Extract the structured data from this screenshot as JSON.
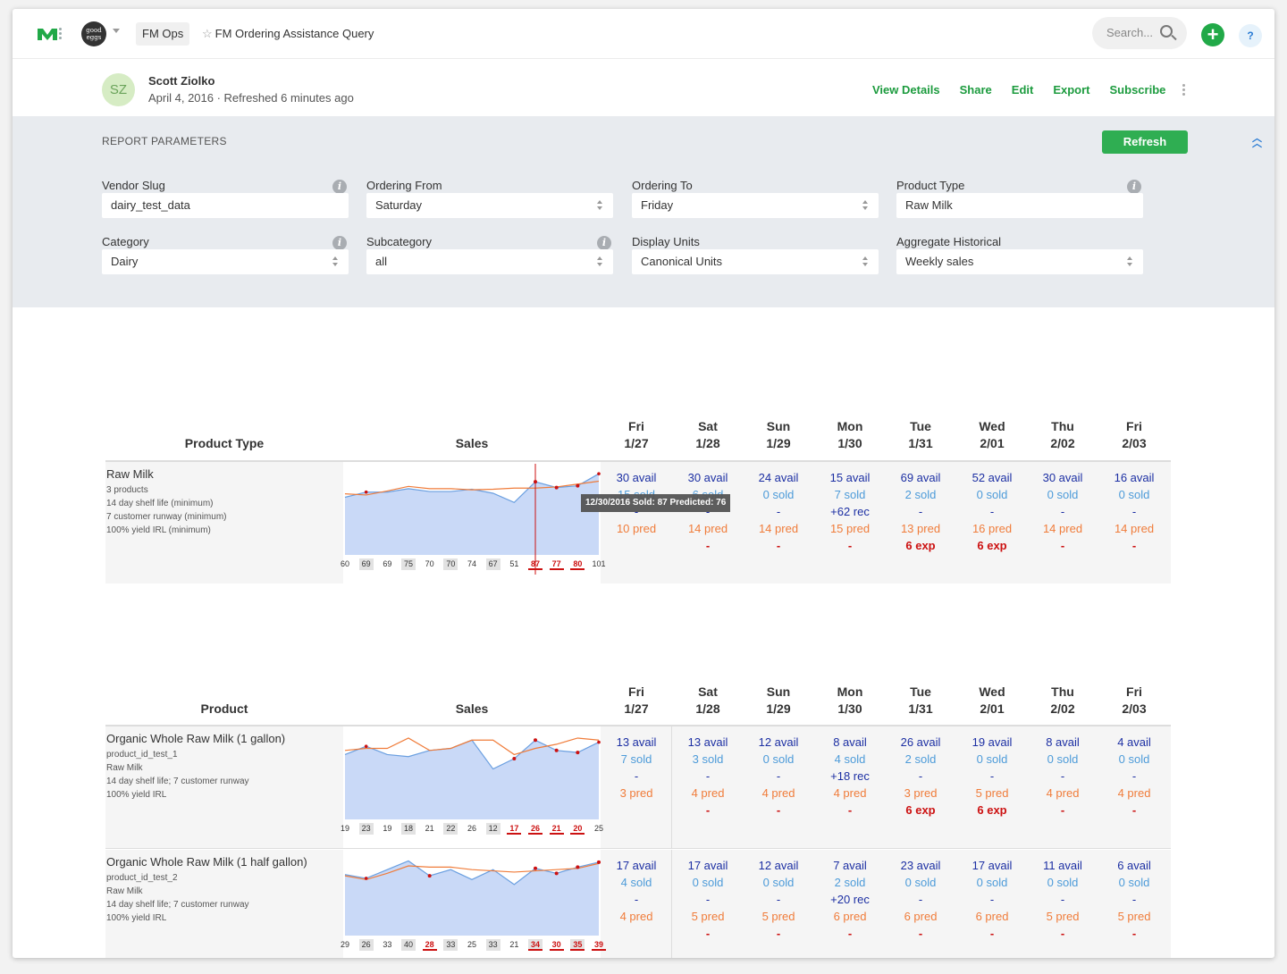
{
  "topbar": {
    "org_avatar_text": "good eggs",
    "space": "FM Ops",
    "title": "FM Ordering Assistance Query",
    "search_placeholder": "Search...",
    "add_label": "+",
    "help_label": "?"
  },
  "author": {
    "initials": "SZ",
    "name": "Scott Ziolko",
    "date": "April 4, 2016 · Refreshed 6 minutes ago"
  },
  "actions": [
    "View Details",
    "Share",
    "Edit",
    "Export",
    "Subscribe"
  ],
  "params": {
    "title": "REPORT PARAMETERS",
    "refresh": "Refresh",
    "fields": [
      {
        "label": "Vendor Slug",
        "value": "dairy_test_data",
        "info": true,
        "select": false
      },
      {
        "label": "Ordering From",
        "value": "Saturday",
        "info": false,
        "select": true
      },
      {
        "label": "Ordering To",
        "value": "Friday",
        "info": false,
        "select": true
      },
      {
        "label": "Product Type",
        "value": "Raw Milk",
        "info": true,
        "select": false
      },
      {
        "label": "Category",
        "value": "Dairy",
        "info": true,
        "select": true
      },
      {
        "label": "Subcategory",
        "value": "all",
        "info": true,
        "select": true
      },
      {
        "label": "Display Units",
        "value": "Canonical Units",
        "info": false,
        "select": true
      },
      {
        "label": "Aggregate Historical",
        "value": "Weekly sales",
        "info": false,
        "select": true
      }
    ]
  },
  "days": [
    {
      "dow": "Fri",
      "date": "1/27"
    },
    {
      "dow": "Sat",
      "date": "1/28"
    },
    {
      "dow": "Sun",
      "date": "1/29"
    },
    {
      "dow": "Mon",
      "date": "1/30"
    },
    {
      "dow": "Tue",
      "date": "1/31"
    },
    {
      "dow": "Wed",
      "date": "2/01"
    },
    {
      "dow": "Thu",
      "date": "2/02"
    },
    {
      "dow": "Fri",
      "date": "2/03"
    }
  ],
  "tables": [
    {
      "col1": "Product Type",
      "col2": "Sales",
      "rows": [
        {
          "title": "Raw Milk",
          "sub": [
            "3 products",
            "14 day shelf life (minimum)",
            "7 customer runway (minimum)",
            "100% yield IRL (minimum)"
          ],
          "sold": [
            60,
            69,
            69,
            75,
            70,
            70,
            74,
            67,
            51,
            87,
            77,
            80,
            101
          ],
          "pred": [
            66,
            64,
            71,
            79,
            75,
            75,
            73,
            74,
            76,
            76,
            78,
            83,
            88
          ],
          "boxed": [
            1,
            3,
            5,
            7
          ],
          "red": [
            9,
            10,
            11
          ],
          "cells": [
            [
              "30 avail",
              "15 sold",
              "-",
              "",
              "10 pred",
              ""
            ],
            [
              "30 avail",
              "6 sold",
              "-",
              "",
              "14 pred",
              "-"
            ],
            [
              "24 avail",
              "0 sold",
              "-",
              "",
              "14 pred",
              "-"
            ],
            [
              "15 avail",
              "7 sold",
              "+62 rec",
              "",
              "15 pred",
              "-"
            ],
            [
              "69 avail",
              "2 sold",
              "-",
              "",
              "13 pred",
              "6 exp"
            ],
            [
              "52 avail",
              "0 sold",
              "-",
              "",
              "16 pred",
              "6 exp"
            ],
            [
              "30 avail",
              "0 sold",
              "-",
              "",
              "14 pred",
              "-"
            ],
            [
              "16 avail",
              "0 sold",
              "-",
              "",
              "14 pred",
              "-"
            ]
          ],
          "tooltip": "12/30/2016 Sold: 87 Predicted: 76"
        }
      ]
    },
    {
      "col1": "Product",
      "col2": "Sales",
      "rows": [
        {
          "title": "Organic Whole Raw Milk (1 gallon)",
          "sub": [
            "product_id_test_1",
            "Raw Milk",
            "14 day shelf life; 7 customer runway",
            "100% yield IRL"
          ],
          "sold": [
            19,
            23,
            19,
            18,
            21,
            22,
            26,
            12,
            17,
            26,
            21,
            20,
            25
          ],
          "pred": [
            21,
            22,
            22,
            27,
            21,
            22,
            26,
            26,
            19,
            22,
            24,
            27,
            26
          ],
          "boxed": [
            1,
            3,
            5,
            7
          ],
          "red": [
            8,
            9,
            10,
            11
          ],
          "cells": [
            [
              "13 avail",
              "7 sold",
              "-",
              "",
              "3 pred",
              ""
            ],
            [
              "13 avail",
              "3 sold",
              "-",
              "",
              "4 pred",
              "-"
            ],
            [
              "12 avail",
              "0 sold",
              "-",
              "",
              "4 pred",
              "-"
            ],
            [
              "8 avail",
              "4 sold",
              "+18 rec",
              "",
              "4 pred",
              "-"
            ],
            [
              "26 avail",
              "2 sold",
              "-",
              "",
              "3 pred",
              "6 exp"
            ],
            [
              "19 avail",
              "0 sold",
              "-",
              "",
              "5 pred",
              "6 exp"
            ],
            [
              "8 avail",
              "0 sold",
              "-",
              "",
              "4 pred",
              "-"
            ],
            [
              "4 avail",
              "0 sold",
              "-",
              "",
              "4 pred",
              "-"
            ]
          ]
        },
        {
          "title": "Organic Whole Raw Milk (1 half gallon)",
          "sub": [
            "product_id_test_2",
            "Raw Milk",
            "14 day shelf life; 7 customer runway",
            "100% yield IRL"
          ],
          "sold": [
            29,
            26,
            33,
            40,
            28,
            33,
            25,
            33,
            21,
            34,
            30,
            35,
            39
          ],
          "pred": [
            28,
            25,
            30,
            36,
            35,
            35,
            33,
            32,
            31,
            32,
            33,
            34,
            38
          ],
          "boxed": [
            1,
            3,
            5,
            7,
            9,
            11
          ],
          "red": [
            4,
            9,
            10,
            11,
            12
          ],
          "cells": [
            [
              "17 avail",
              "4 sold",
              "-",
              "",
              "4 pred",
              ""
            ],
            [
              "17 avail",
              "0 sold",
              "-",
              "",
              "5 pred",
              "-"
            ],
            [
              "12 avail",
              "0 sold",
              "-",
              "",
              "5 pred",
              "-"
            ],
            [
              "7 avail",
              "2 sold",
              "+20 rec",
              "",
              "6 pred",
              "-"
            ],
            [
              "23 avail",
              "0 sold",
              "-",
              "",
              "6 pred",
              "-"
            ],
            [
              "17 avail",
              "0 sold",
              "-",
              "",
              "6 pred",
              "-"
            ],
            [
              "11 avail",
              "0 sold",
              "-",
              "",
              "5 pred",
              "-"
            ],
            [
              "6 avail",
              "0 sold",
              "-",
              "",
              "5 pred",
              "-"
            ]
          ]
        }
      ]
    }
  ],
  "colors": {
    "accent_green": "#1c9b3e",
    "avail": "#1c2fa3",
    "sold": "#4d9bd9",
    "pred": "#f07c3a",
    "exp": "#cc1111",
    "area_fill": "#c9d9f7"
  }
}
